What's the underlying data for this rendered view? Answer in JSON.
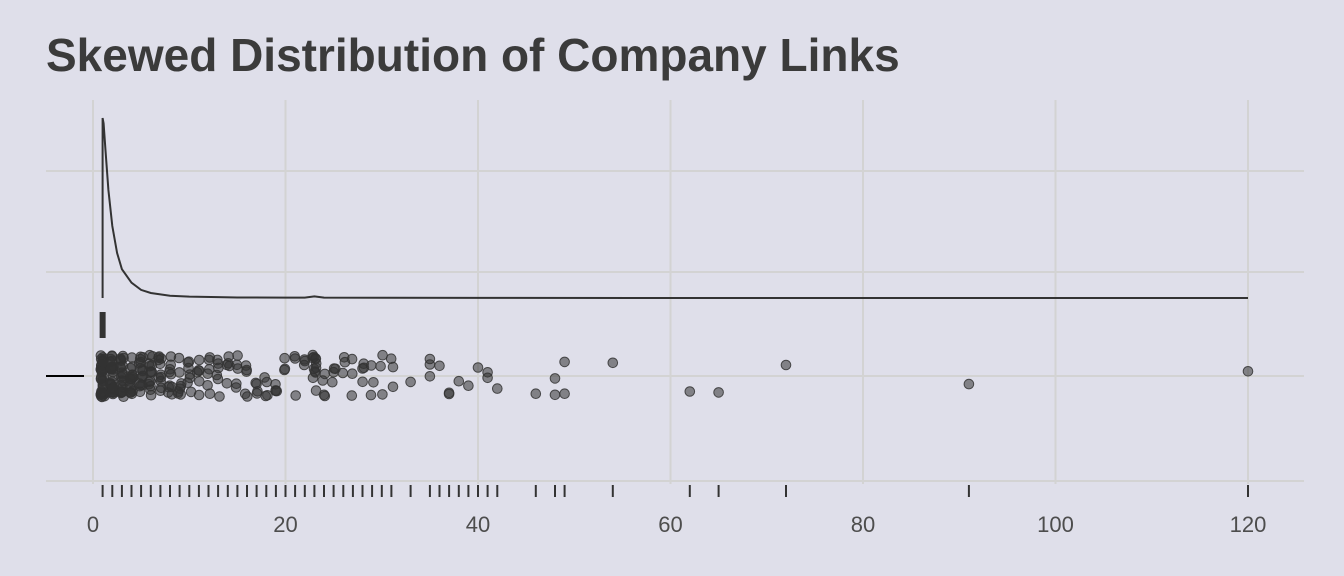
{
  "chart_data": {
    "type": "scatter",
    "title": "Skewed Distribution of Company Links",
    "xlabel": "",
    "ylabel": "",
    "xlim": [
      -5,
      126
    ],
    "x_ticks": [
      0,
      20,
      40,
      60,
      80,
      100,
      120
    ],
    "grid": true,
    "background": "#dfdfea",
    "grid_color": "#d3d3d3",
    "mark_color": "#333333",
    "panels": [
      "density",
      "jittered points",
      "rug"
    ],
    "density_curve": {
      "x": [
        1,
        1.1,
        1.3,
        1.6,
        2,
        2.5,
        3,
        4,
        5,
        6,
        8,
        10,
        13,
        15,
        20,
        22,
        23,
        24,
        30,
        40,
        60,
        80,
        100,
        120
      ],
      "y": [
        1.0,
        0.97,
        0.82,
        0.6,
        0.4,
        0.25,
        0.16,
        0.085,
        0.045,
        0.028,
        0.013,
        0.008,
        0.005,
        0.003,
        0.002,
        0.002,
        0.009,
        0.002,
        0.001,
        0.0005,
        0.0002,
        0.0001,
        0.0001,
        0.0001
      ]
    },
    "points_x": [
      1,
      1,
      1,
      1,
      1,
      1,
      1,
      1,
      1,
      1,
      1,
      1,
      1,
      1,
      1,
      1,
      1,
      1,
      1,
      1,
      1,
      1,
      1,
      1,
      1,
      1,
      1,
      1,
      1,
      1,
      1,
      1,
      1,
      1,
      1,
      1,
      1,
      1,
      1,
      1,
      2,
      2,
      2,
      2,
      2,
      2,
      2,
      2,
      2,
      2,
      2,
      2,
      2,
      2,
      2,
      2,
      2,
      2,
      2,
      2,
      2,
      2,
      2,
      2,
      2,
      2,
      2,
      2,
      2,
      2,
      3,
      3,
      3,
      3,
      3,
      3,
      3,
      3,
      3,
      3,
      3,
      3,
      3,
      3,
      3,
      3,
      3,
      3,
      3,
      3,
      3,
      3,
      4,
      4,
      4,
      4,
      4,
      4,
      4,
      4,
      4,
      4,
      4,
      4,
      4,
      4,
      4,
      4,
      4,
      4,
      5,
      5,
      5,
      5,
      5,
      5,
      5,
      5,
      5,
      5,
      5,
      5,
      5,
      5,
      5,
      5,
      6,
      6,
      6,
      6,
      6,
      6,
      6,
      6,
      6,
      6,
      6,
      6,
      6,
      6,
      7,
      7,
      7,
      7,
      7,
      7,
      7,
      7,
      7,
      7,
      7,
      8,
      8,
      8,
      8,
      8,
      8,
      8,
      8,
      8,
      8,
      9,
      9,
      9,
      9,
      9,
      9,
      9,
      9,
      10,
      10,
      10,
      10,
      10,
      10,
      10,
      11,
      11,
      11,
      11,
      11,
      11,
      12,
      12,
      12,
      12,
      12,
      12,
      13,
      13,
      13,
      13,
      13,
      13,
      14,
      14,
      14,
      14,
      14,
      15,
      15,
      15,
      15,
      15,
      16,
      16,
      16,
      16,
      16,
      17,
      17,
      17,
      17,
      18,
      18,
      18,
      18,
      19,
      19,
      19,
      19,
      20,
      20,
      20,
      21,
      21,
      21,
      22,
      22,
      22,
      23,
      23,
      23,
      23,
      23,
      23,
      23,
      23,
      23,
      23,
      23,
      23,
      24,
      24,
      24,
      24,
      25,
      25,
      25,
      25,
      26,
      26,
      26,
      27,
      27,
      27,
      28,
      28,
      28,
      28,
      29,
      29,
      29,
      30,
      30,
      30,
      31,
      31,
      31,
      33,
      35,
      35,
      35,
      36,
      37,
      37,
      38,
      39,
      40,
      41,
      41,
      42,
      46,
      48,
      48,
      49,
      49,
      54,
      62,
      65,
      72,
      91,
      120
    ]
  }
}
